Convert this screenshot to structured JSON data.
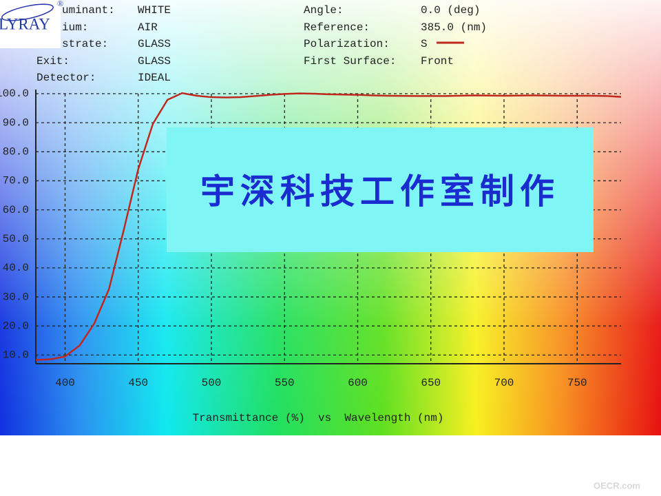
{
  "logo": {
    "text": "LYRAY",
    "mark": "®"
  },
  "watermark": "OECR.com",
  "overlay": "宇深科技工作室制作",
  "settings_left": [
    {
      "label": "uminant:",
      "value": "WHITE"
    },
    {
      "label": "ium:",
      "value": "AIR"
    },
    {
      "label": "strate:",
      "value": "GLASS"
    },
    {
      "label": "Exit:",
      "value": "GLASS"
    },
    {
      "label": "Detector:",
      "value": "IDEAL"
    }
  ],
  "settings_right": [
    {
      "label": "Angle:",
      "value": "0.0 (deg)"
    },
    {
      "label": "Reference:",
      "value": "385.0 (nm)"
    },
    {
      "label": "Polarization:"
    },
    {
      "label": "First Surface:",
      "value": "Front"
    }
  ],
  "chart_data": {
    "type": "line",
    "x_label": "Transmittance (%)  vs  Wavelength (nm)",
    "x": [
      380,
      390,
      400,
      410,
      420,
      430,
      440,
      450,
      460,
      470,
      480,
      490,
      500,
      510,
      520,
      530,
      540,
      550,
      560,
      570,
      580,
      590,
      600,
      610,
      620,
      640,
      660,
      680,
      700,
      720,
      740,
      760,
      770,
      780
    ],
    "series": [
      {
        "name": "S",
        "color": "#c0281e",
        "values": [
          8.3,
          8.5,
          9.5,
          13.3,
          20.9,
          32.7,
          52.8,
          74,
          89.6,
          97.9,
          100.2,
          99.3,
          98.8,
          98.7,
          98.8,
          99.2,
          99.6,
          99.9,
          100.1,
          100,
          99.8,
          99.7,
          99.6,
          99.4,
          99.3,
          99.2,
          99.2,
          99.4,
          99.3,
          99.4,
          99.3,
          99.3,
          99.2,
          98.9
        ]
      }
    ],
    "xlim": [
      380,
      780
    ],
    "ylim": [
      7,
      100
    ],
    "xticks": [
      400,
      450,
      500,
      550,
      600,
      650,
      700,
      750
    ],
    "yticks": [
      {
        "value": 10,
        "label": "10.0"
      },
      {
        "value": 20,
        "label": "20.0"
      },
      {
        "value": 30,
        "label": "30.0"
      },
      {
        "value": 40,
        "label": "40.0"
      },
      {
        "value": 50,
        "label": "50.0"
      },
      {
        "value": 60,
        "label": "60.0"
      },
      {
        "value": 70,
        "label": "70.0"
      },
      {
        "value": 80,
        "label": "80.0"
      },
      {
        "value": 90,
        "label": "90.0"
      },
      {
        "value": 100,
        "label": "100.0"
      }
    ],
    "grid": true
  }
}
